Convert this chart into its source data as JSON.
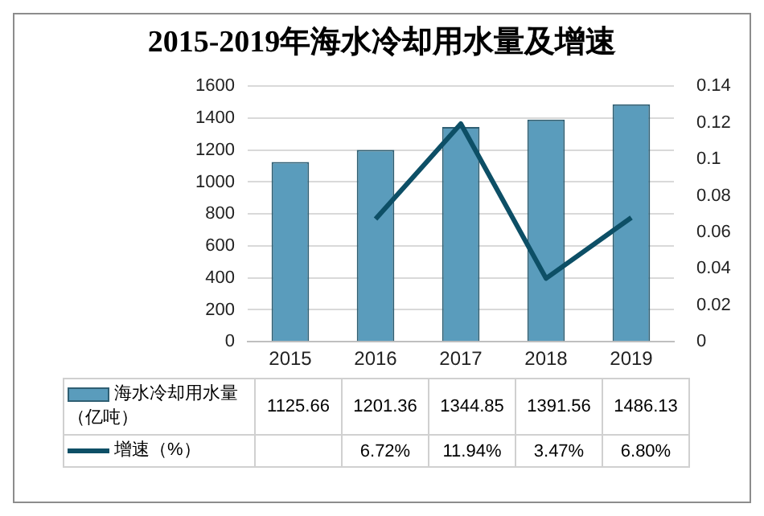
{
  "chart_data": {
    "type": "bar",
    "title": "2015-2019年海水冷却用水量及增速",
    "categories": [
      "2015",
      "2016",
      "2017",
      "2018",
      "2019"
    ],
    "series": [
      {
        "name": "海水冷却用水量（亿吨）",
        "color": "#5a9cbc",
        "values": [
          1125.66,
          1201.36,
          1344.85,
          1391.56,
          1486.13
        ]
      },
      {
        "name": "增速（%）",
        "type": "line",
        "axis": "y2",
        "color": "#0d4f66",
        "values": [
          null,
          0.0672,
          0.1194,
          0.0347,
          0.068
        ],
        "value_labels": [
          null,
          "6.72%",
          "11.94%",
          "3.47%",
          "6.80%"
        ]
      }
    ],
    "ylim": [
      0,
      1600
    ],
    "yticks": [
      0,
      200,
      400,
      600,
      800,
      1000,
      1200,
      1400,
      1600
    ],
    "y2lim": [
      0,
      0.14
    ],
    "y2ticks": [
      0,
      0.02,
      0.04,
      0.06,
      0.08,
      0.1,
      0.12,
      0.14
    ],
    "grid": "y",
    "legend": "bottom",
    "data_labels": true,
    "marker": "none"
  }
}
